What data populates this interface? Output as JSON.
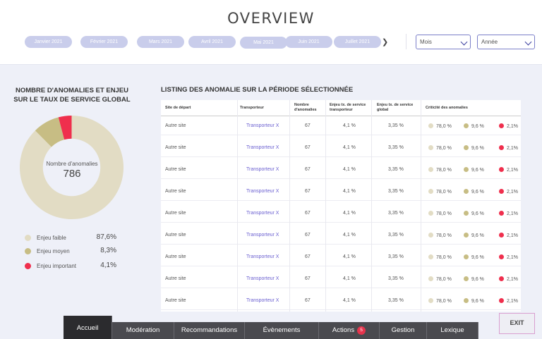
{
  "header": {
    "title": "OVERVIEW",
    "months": [
      "Janvier 2021",
      "Février 2021",
      "Mars 2021",
      "Avril 2021",
      "Mai 2021",
      "Juin 2021",
      "Juillet 2021"
    ],
    "active_month": "Mai 2021",
    "select_period": "Mois",
    "select_year": "Année"
  },
  "left_panel": {
    "title": "NOMBRE D'ANOMALIES ET ENJEU SUR LE TAUX DE SERVICE GLOBAL",
    "donut_label": "Nombre d'anomalies",
    "donut_value": "786",
    "legend": [
      {
        "label": "Enjeu faible",
        "pct": "87,6%",
        "value": 87.6,
        "color": "#e2dcc4"
      },
      {
        "label": "Enjeu moyen",
        "pct": "8,3%",
        "value": 8.3,
        "color": "#c7bd84"
      },
      {
        "label": "Enjeu important",
        "pct": "4,1%",
        "value": 4.1,
        "color": "#ef2f4d"
      }
    ]
  },
  "table": {
    "title": "LISTING DES ANOMALIE SUR LA PÉRIODE SÉLECTIONNÉE",
    "headers": {
      "site": "Site de départ",
      "transporteur": "Transporteur",
      "nombre": "Nombre d'anomalies",
      "enjeu_transporteur": "Enjeu tx. de service transporteur",
      "enjeu_global": "Enjeu tx. de service global",
      "criticite": "Criticité des anomalies"
    },
    "rows": [
      {
        "site": "Autre site",
        "transporteur": "Transporteur X",
        "nombre": "67",
        "enjeu_t": "4,1 %",
        "enjeu_g": "3,35 %",
        "c1": "78,0 %",
        "c2": "9,6 %",
        "c3": "2,1%"
      },
      {
        "site": "Autre site",
        "transporteur": "Transporteur X",
        "nombre": "67",
        "enjeu_t": "4,1 %",
        "enjeu_g": "3,35 %",
        "c1": "78,0 %",
        "c2": "9,6 %",
        "c3": "2,1%"
      },
      {
        "site": "Autre site",
        "transporteur": "Transporteur X",
        "nombre": "67",
        "enjeu_t": "4,1 %",
        "enjeu_g": "3,35 %",
        "c1": "78,0 %",
        "c2": "9,6 %",
        "c3": "2,1%"
      },
      {
        "site": "Autre site",
        "transporteur": "Transporteur X",
        "nombre": "67",
        "enjeu_t": "4,1 %",
        "enjeu_g": "3,35 %",
        "c1": "78,0 %",
        "c2": "9,6 %",
        "c3": "2,1%"
      },
      {
        "site": "Autre site",
        "transporteur": "Transporteur X",
        "nombre": "67",
        "enjeu_t": "4,1 %",
        "enjeu_g": "3,35 %",
        "c1": "78,0 %",
        "c2": "9,6 %",
        "c3": "2,1%"
      },
      {
        "site": "Autre site",
        "transporteur": "Transporteur X",
        "nombre": "67",
        "enjeu_t": "4,1 %",
        "enjeu_g": "3,35 %",
        "c1": "78,0 %",
        "c2": "9,6 %",
        "c3": "2,1%"
      },
      {
        "site": "Autre site",
        "transporteur": "Transporteur X",
        "nombre": "67",
        "enjeu_t": "4,1 %",
        "enjeu_g": "3,35 %",
        "c1": "78,0 %",
        "c2": "9,6 %",
        "c3": "2,1%"
      },
      {
        "site": "Autre site",
        "transporteur": "Transporteur X",
        "nombre": "67",
        "enjeu_t": "4,1 %",
        "enjeu_g": "3,35 %",
        "c1": "78,0 %",
        "c2": "9,6 %",
        "c3": "2,1%"
      },
      {
        "site": "Autre site",
        "transporteur": "Transporteur X",
        "nombre": "67",
        "enjeu_t": "4,1 %",
        "enjeu_g": "3,35 %",
        "c1": "78,0 %",
        "c2": "9,6 %",
        "c3": "2,1%"
      }
    ]
  },
  "nav": {
    "tabs": [
      "Accueil",
      "Modération",
      "Recommandations",
      "Évènements",
      "Actions",
      "Gestion",
      "Lexique"
    ],
    "active": "Accueil",
    "actions_badge": "5",
    "exit_label": "EXIT"
  },
  "colors": {
    "accent": "#7b7fc9",
    "month_pill": "#c9cdeb",
    "low": "#e2dcc4",
    "medium": "#c7bd84",
    "high": "#ef2f4d",
    "tab_bg": "#4a4a4f"
  }
}
